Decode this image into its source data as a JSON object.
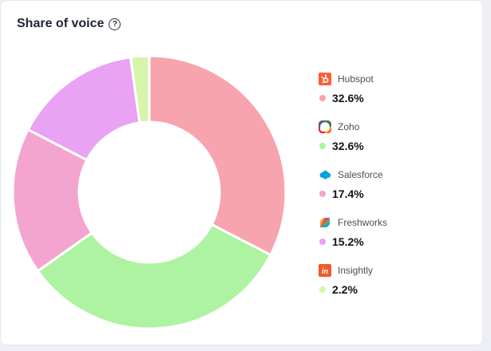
{
  "header": {
    "title": "Share of voice",
    "help_icon": "question-circle-icon",
    "help_glyph": "?"
  },
  "colors": {
    "hubspot": "#f7a4ae",
    "zoho": "#aef3a1",
    "salesforce": "#f4a5cf",
    "freshworks": "#e9a2f4",
    "insightly": "#d6f5a9"
  },
  "chart_data": {
    "type": "pie",
    "variant": "donut",
    "series": [
      {
        "name": "Hubspot",
        "value": 32.6,
        "label": "32.6%",
        "color": "#f7a4ae",
        "icon": "hubspot-logo-icon"
      },
      {
        "name": "Zoho",
        "value": 32.6,
        "label": "32.6%",
        "color": "#aef3a1",
        "icon": "zoho-logo-icon"
      },
      {
        "name": "Salesforce",
        "value": 17.4,
        "label": "17.4%",
        "color": "#f4a5cf",
        "icon": "salesforce-logo-icon"
      },
      {
        "name": "Freshworks",
        "value": 15.2,
        "label": "15.2%",
        "color": "#e9a2f4",
        "icon": "freshworks-logo-icon"
      },
      {
        "name": "Insightly",
        "value": 2.2,
        "label": "2.2%",
        "color": "#d6f5a9",
        "icon": "insightly-logo-icon"
      }
    ],
    "start_angle_deg": 0,
    "direction": "clockwise",
    "legend_position": "right"
  }
}
